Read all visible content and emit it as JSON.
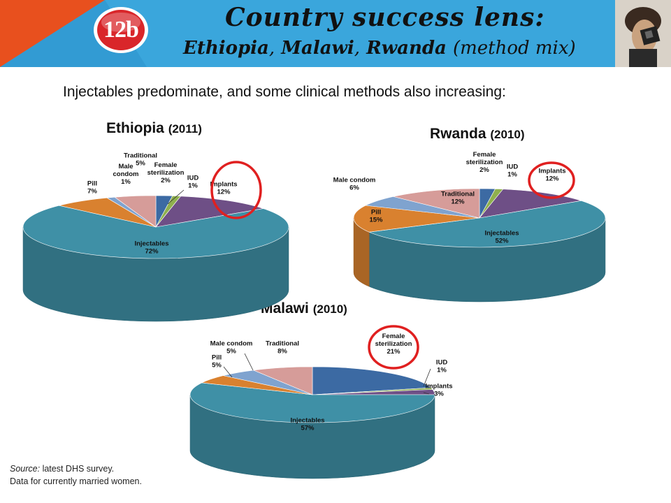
{
  "header": {
    "badge": "12b",
    "title_line1": "Country success lens:",
    "title_country1": "Ethiopia",
    "title_country2": "Malawi",
    "title_country3": "Rwanda",
    "title_suffix": "(method mix)",
    "separator": ","
  },
  "subtitle": "Injectables predominate, and some clinical methods also increasing:",
  "source": {
    "label": "Source:",
    "line1": "latest DHS survey.",
    "line2": "Data for currently married women."
  },
  "colors": {
    "header_bg": "#3aa6dc",
    "header_orange": "#e8501e",
    "badge_red": "#d9262a",
    "highlight_circle": "#e02020",
    "Injectables": "#3f90a6",
    "Pill": "#d9812f",
    "Male condom": "#7fa3cf",
    "Traditional": "#d69c99",
    "Female sterilization": "#3c6aa3",
    "IUD": "#8fb04d",
    "Implants": "#6e4f86"
  },
  "chart_data": [
    {
      "type": "pie",
      "title": "Ethiopia",
      "year": "(2011)",
      "categories": [
        "Female sterilization",
        "IUD",
        "Implants",
        "Injectables",
        "Pill",
        "Male condom",
        "Traditional"
      ],
      "values": [
        2,
        1,
        12,
        72,
        7,
        1,
        5
      ],
      "labels": [
        "Female\nsterilization\n2%",
        "IUD\n1%",
        "Implants\n12%",
        "Injectables\n72%",
        "Pill\n7%",
        "Male\ncondom\n1%",
        "Traditional\n5%"
      ],
      "highlight": "Implants"
    },
    {
      "type": "pie",
      "title": "Rwanda",
      "year": "(2010)",
      "categories": [
        "Female sterilization",
        "IUD",
        "Implants",
        "Injectables",
        "Pill",
        "Male condom",
        "Traditional"
      ],
      "values": [
        2,
        1,
        12,
        52,
        15,
        6,
        12
      ],
      "labels": [
        "Female\nsterilization\n2%",
        "IUD\n1%",
        "Implants\n12%",
        "Injectables\n52%",
        "Pill\n15%",
        "Male condom\n6%",
        "Traditional\n12%"
      ],
      "highlight": "Implants"
    },
    {
      "type": "pie",
      "title": "Malawi",
      "year": "(2010)",
      "categories": [
        "Female sterilization",
        "IUD",
        "Implants",
        "Injectables",
        "Pill",
        "Male condom",
        "Traditional"
      ],
      "values": [
        21,
        1,
        3,
        57,
        5,
        5,
        8
      ],
      "labels": [
        "Female\nsterilization\n21%",
        "IUD\n1%",
        "Implants\n3%",
        "Injectables\n57%",
        "Pill\n5%",
        "Male condom\n5%",
        "Traditional\n8%"
      ],
      "highlight": "Female sterilization"
    }
  ]
}
